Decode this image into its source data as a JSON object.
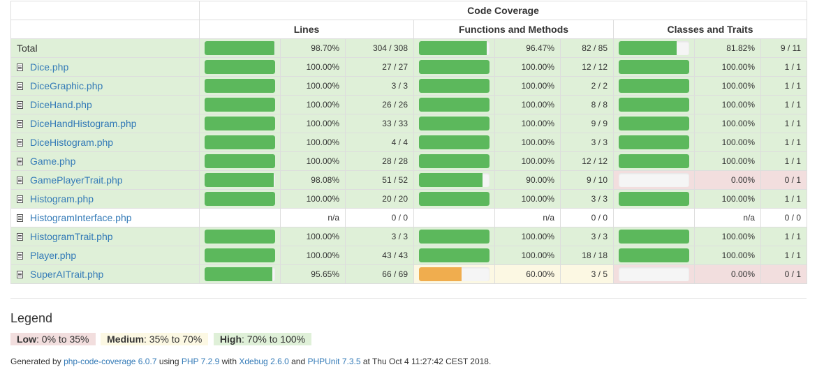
{
  "table": {
    "header_main": "Code Coverage",
    "header_cols": [
      "Lines",
      "Functions and Methods",
      "Classes and Traits"
    ],
    "total": {
      "name": "Total",
      "lines": {
        "pct": "98.70%",
        "ratio": "304 / 308",
        "level": "high",
        "fill": 0.987
      },
      "funcs": {
        "pct": "96.47%",
        "ratio": "82 / 85",
        "level": "high",
        "fill": 0.9647
      },
      "classes": {
        "pct": "81.82%",
        "ratio": "9 / 11",
        "level": "high",
        "fill": 0.8182
      }
    },
    "rows": [
      {
        "name": "Dice.php",
        "lines": {
          "pct": "100.00%",
          "ratio": "27 / 27",
          "level": "high",
          "fill": 1
        },
        "funcs": {
          "pct": "100.00%",
          "ratio": "12 / 12",
          "level": "high",
          "fill": 1
        },
        "classes": {
          "pct": "100.00%",
          "ratio": "1 / 1",
          "level": "high",
          "fill": 1
        }
      },
      {
        "name": "DiceGraphic.php",
        "lines": {
          "pct": "100.00%",
          "ratio": "3 / 3",
          "level": "high",
          "fill": 1
        },
        "funcs": {
          "pct": "100.00%",
          "ratio": "2 / 2",
          "level": "high",
          "fill": 1
        },
        "classes": {
          "pct": "100.00%",
          "ratio": "1 / 1",
          "level": "high",
          "fill": 1
        }
      },
      {
        "name": "DiceHand.php",
        "lines": {
          "pct": "100.00%",
          "ratio": "26 / 26",
          "level": "high",
          "fill": 1
        },
        "funcs": {
          "pct": "100.00%",
          "ratio": "8 / 8",
          "level": "high",
          "fill": 1
        },
        "classes": {
          "pct": "100.00%",
          "ratio": "1 / 1",
          "level": "high",
          "fill": 1
        }
      },
      {
        "name": "DiceHandHistogram.php",
        "lines": {
          "pct": "100.00%",
          "ratio": "33 / 33",
          "level": "high",
          "fill": 1
        },
        "funcs": {
          "pct": "100.00%",
          "ratio": "9 / 9",
          "level": "high",
          "fill": 1
        },
        "classes": {
          "pct": "100.00%",
          "ratio": "1 / 1",
          "level": "high",
          "fill": 1
        }
      },
      {
        "name": "DiceHistogram.php",
        "lines": {
          "pct": "100.00%",
          "ratio": "4 / 4",
          "level": "high",
          "fill": 1
        },
        "funcs": {
          "pct": "100.00%",
          "ratio": "3 / 3",
          "level": "high",
          "fill": 1
        },
        "classes": {
          "pct": "100.00%",
          "ratio": "1 / 1",
          "level": "high",
          "fill": 1
        }
      },
      {
        "name": "Game.php",
        "lines": {
          "pct": "100.00%",
          "ratio": "28 / 28",
          "level": "high",
          "fill": 1
        },
        "funcs": {
          "pct": "100.00%",
          "ratio": "12 / 12",
          "level": "high",
          "fill": 1
        },
        "classes": {
          "pct": "100.00%",
          "ratio": "1 / 1",
          "level": "high",
          "fill": 1
        }
      },
      {
        "name": "GamePlayerTrait.php",
        "lines": {
          "pct": "98.08%",
          "ratio": "51 / 52",
          "level": "high",
          "fill": 0.9808
        },
        "funcs": {
          "pct": "90.00%",
          "ratio": "9 / 10",
          "level": "high",
          "fill": 0.9
        },
        "classes": {
          "pct": "0.00%",
          "ratio": "0 / 1",
          "level": "low",
          "fill": 0
        }
      },
      {
        "name": "Histogram.php",
        "lines": {
          "pct": "100.00%",
          "ratio": "20 / 20",
          "level": "high",
          "fill": 1
        },
        "funcs": {
          "pct": "100.00%",
          "ratio": "3 / 3",
          "level": "high",
          "fill": 1
        },
        "classes": {
          "pct": "100.00%",
          "ratio": "1 / 1",
          "level": "high",
          "fill": 1
        }
      },
      {
        "name": "HistogramInterface.php",
        "lines": {
          "pct": "n/a",
          "ratio": "0 / 0",
          "level": "none",
          "fill": null
        },
        "funcs": {
          "pct": "n/a",
          "ratio": "0 / 0",
          "level": "none",
          "fill": null
        },
        "classes": {
          "pct": "n/a",
          "ratio": "0 / 0",
          "level": "none",
          "fill": null
        }
      },
      {
        "name": "HistogramTrait.php",
        "lines": {
          "pct": "100.00%",
          "ratio": "3 / 3",
          "level": "high",
          "fill": 1
        },
        "funcs": {
          "pct": "100.00%",
          "ratio": "3 / 3",
          "level": "high",
          "fill": 1
        },
        "classes": {
          "pct": "100.00%",
          "ratio": "1 / 1",
          "level": "high",
          "fill": 1
        }
      },
      {
        "name": "Player.php",
        "lines": {
          "pct": "100.00%",
          "ratio": "43 / 43",
          "level": "high",
          "fill": 1
        },
        "funcs": {
          "pct": "100.00%",
          "ratio": "18 / 18",
          "level": "high",
          "fill": 1
        },
        "classes": {
          "pct": "100.00%",
          "ratio": "1 / 1",
          "level": "high",
          "fill": 1
        }
      },
      {
        "name": "SuperAITrait.php",
        "lines": {
          "pct": "95.65%",
          "ratio": "66 / 69",
          "level": "high",
          "fill": 0.9565
        },
        "funcs": {
          "pct": "60.00%",
          "ratio": "3 / 5",
          "level": "medium",
          "fill": 0.6
        },
        "classes": {
          "pct": "0.00%",
          "ratio": "0 / 1",
          "level": "low",
          "fill": 0
        }
      }
    ]
  },
  "legend": {
    "title": "Legend",
    "items": [
      {
        "level": "low",
        "label": "Low",
        "range": ": 0% to 35%"
      },
      {
        "level": "medium",
        "label": "Medium",
        "range": ": 35% to 70%"
      },
      {
        "level": "high",
        "label": "High",
        "range": ": 70% to 100%"
      }
    ]
  },
  "footer": {
    "generated_by": "Generated by ",
    "tool_link": "php-code-coverage 6.0.7",
    "using": " using ",
    "php_link": "PHP 7.2.9",
    "with": " with ",
    "xdebug_link": "Xdebug 2.6.0",
    "and": " and ",
    "phpunit_link": "PHPUnit 7.3.5",
    "at": " at Thu Oct 4 11:27:42 CEST 2018."
  }
}
